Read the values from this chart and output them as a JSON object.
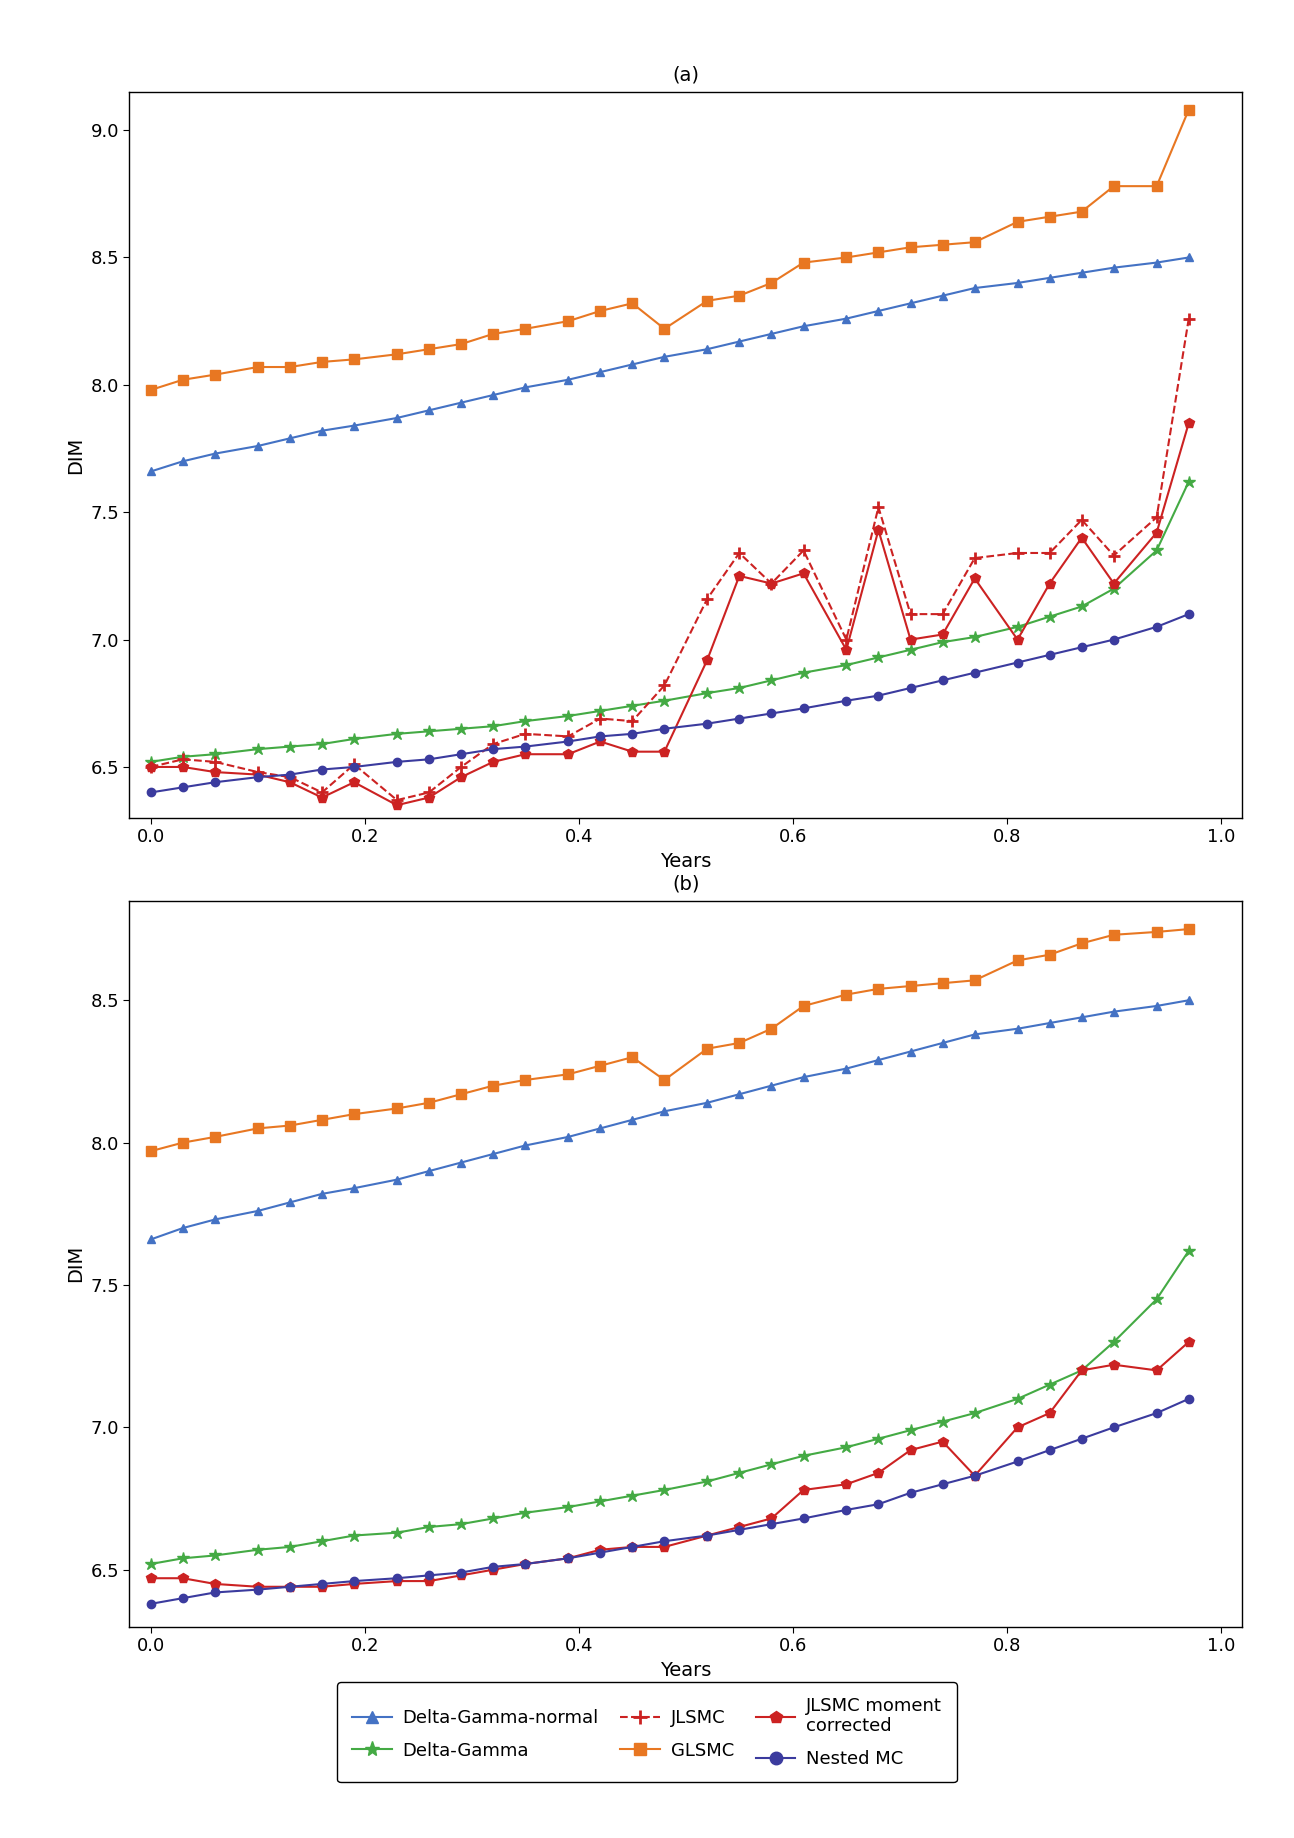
{
  "title_a": "(a)",
  "title_b": "(b)",
  "xlabel": "Years",
  "ylabel": "DIM",
  "x_ticks": [
    0.0,
    0.2,
    0.4,
    0.6,
    0.8,
    1.0
  ],
  "xlim": [
    -0.02,
    1.02
  ],
  "panel_a": {
    "delta_gamma_normal": {
      "x": [
        0.0,
        0.03,
        0.06,
        0.1,
        0.13,
        0.16,
        0.19,
        0.23,
        0.26,
        0.29,
        0.32,
        0.35,
        0.39,
        0.42,
        0.45,
        0.48,
        0.52,
        0.55,
        0.58,
        0.61,
        0.65,
        0.68,
        0.71,
        0.74,
        0.77,
        0.81,
        0.84,
        0.87,
        0.9,
        0.94,
        0.97
      ],
      "y": [
        7.66,
        7.7,
        7.73,
        7.76,
        7.79,
        7.82,
        7.84,
        7.87,
        7.9,
        7.93,
        7.96,
        7.99,
        8.02,
        8.05,
        8.08,
        8.11,
        8.14,
        8.17,
        8.2,
        8.23,
        8.26,
        8.29,
        8.32,
        8.35,
        8.38,
        8.4,
        8.42,
        8.44,
        8.46,
        8.48,
        8.5
      ]
    },
    "glsmc": {
      "x": [
        0.0,
        0.03,
        0.06,
        0.1,
        0.13,
        0.16,
        0.19,
        0.23,
        0.26,
        0.29,
        0.32,
        0.35,
        0.39,
        0.42,
        0.45,
        0.48,
        0.52,
        0.55,
        0.58,
        0.61,
        0.65,
        0.68,
        0.71,
        0.74,
        0.77,
        0.81,
        0.84,
        0.87,
        0.9,
        0.94,
        0.97
      ],
      "y": [
        7.98,
        8.02,
        8.04,
        8.07,
        8.07,
        8.09,
        8.1,
        8.12,
        8.14,
        8.16,
        8.2,
        8.22,
        8.25,
        8.29,
        8.32,
        8.22,
        8.33,
        8.35,
        8.4,
        8.48,
        8.5,
        8.52,
        8.54,
        8.55,
        8.56,
        8.64,
        8.66,
        8.68,
        8.78,
        8.78,
        9.08
      ]
    },
    "delta_gamma": {
      "x": [
        0.0,
        0.03,
        0.06,
        0.1,
        0.13,
        0.16,
        0.19,
        0.23,
        0.26,
        0.29,
        0.32,
        0.35,
        0.39,
        0.42,
        0.45,
        0.48,
        0.52,
        0.55,
        0.58,
        0.61,
        0.65,
        0.68,
        0.71,
        0.74,
        0.77,
        0.81,
        0.84,
        0.87,
        0.9,
        0.94,
        0.97
      ],
      "y": [
        6.52,
        6.54,
        6.55,
        6.57,
        6.58,
        6.59,
        6.61,
        6.63,
        6.64,
        6.65,
        6.66,
        6.68,
        6.7,
        6.72,
        6.74,
        6.76,
        6.79,
        6.81,
        6.84,
        6.87,
        6.9,
        6.93,
        6.96,
        6.99,
        7.01,
        7.05,
        7.09,
        7.13,
        7.2,
        7.35,
        7.62
      ]
    },
    "jlsmc_moment_corrected": {
      "x": [
        0.0,
        0.03,
        0.06,
        0.1,
        0.13,
        0.16,
        0.19,
        0.23,
        0.26,
        0.29,
        0.32,
        0.35,
        0.39,
        0.42,
        0.45,
        0.48,
        0.52,
        0.55,
        0.58,
        0.61,
        0.65,
        0.68,
        0.71,
        0.74,
        0.77,
        0.81,
        0.84,
        0.87,
        0.9,
        0.94,
        0.97
      ],
      "y": [
        6.5,
        6.5,
        6.48,
        6.47,
        6.44,
        6.38,
        6.44,
        6.35,
        6.38,
        6.46,
        6.52,
        6.55,
        6.55,
        6.6,
        6.56,
        6.56,
        6.92,
        7.25,
        7.22,
        7.26,
        6.96,
        7.43,
        7.0,
        7.02,
        7.24,
        7.0,
        7.22,
        7.4,
        7.22,
        7.42,
        7.85
      ]
    },
    "jlsmc": {
      "x": [
        0.0,
        0.03,
        0.06,
        0.1,
        0.13,
        0.16,
        0.19,
        0.23,
        0.26,
        0.29,
        0.32,
        0.35,
        0.39,
        0.42,
        0.45,
        0.48,
        0.52,
        0.55,
        0.58,
        0.61,
        0.65,
        0.68,
        0.71,
        0.74,
        0.77,
        0.81,
        0.84,
        0.87,
        0.9,
        0.94,
        0.97
      ],
      "y": [
        6.5,
        6.53,
        6.52,
        6.48,
        6.46,
        6.4,
        6.51,
        6.37,
        6.4,
        6.5,
        6.59,
        6.63,
        6.62,
        6.69,
        6.68,
        6.82,
        7.16,
        7.34,
        7.22,
        7.35,
        7.0,
        7.52,
        7.1,
        7.1,
        7.32,
        7.34,
        7.34,
        7.47,
        7.33,
        7.48,
        8.26
      ]
    },
    "nested_mc": {
      "x": [
        0.0,
        0.03,
        0.06,
        0.1,
        0.13,
        0.16,
        0.19,
        0.23,
        0.26,
        0.29,
        0.32,
        0.35,
        0.39,
        0.42,
        0.45,
        0.48,
        0.52,
        0.55,
        0.58,
        0.61,
        0.65,
        0.68,
        0.71,
        0.74,
        0.77,
        0.81,
        0.84,
        0.87,
        0.9,
        0.94,
        0.97
      ],
      "y": [
        6.4,
        6.42,
        6.44,
        6.46,
        6.47,
        6.49,
        6.5,
        6.52,
        6.53,
        6.55,
        6.57,
        6.58,
        6.6,
        6.62,
        6.63,
        6.65,
        6.67,
        6.69,
        6.71,
        6.73,
        6.76,
        6.78,
        6.81,
        6.84,
        6.87,
        6.91,
        6.94,
        6.97,
        7.0,
        7.05,
        7.1
      ]
    }
  },
  "panel_b": {
    "delta_gamma_normal": {
      "x": [
        0.0,
        0.03,
        0.06,
        0.1,
        0.13,
        0.16,
        0.19,
        0.23,
        0.26,
        0.29,
        0.32,
        0.35,
        0.39,
        0.42,
        0.45,
        0.48,
        0.52,
        0.55,
        0.58,
        0.61,
        0.65,
        0.68,
        0.71,
        0.74,
        0.77,
        0.81,
        0.84,
        0.87,
        0.9,
        0.94,
        0.97
      ],
      "y": [
        7.66,
        7.7,
        7.73,
        7.76,
        7.79,
        7.82,
        7.84,
        7.87,
        7.9,
        7.93,
        7.96,
        7.99,
        8.02,
        8.05,
        8.08,
        8.11,
        8.14,
        8.17,
        8.2,
        8.23,
        8.26,
        8.29,
        8.32,
        8.35,
        8.38,
        8.4,
        8.42,
        8.44,
        8.46,
        8.48,
        8.5
      ]
    },
    "glsmc": {
      "x": [
        0.0,
        0.03,
        0.06,
        0.1,
        0.13,
        0.16,
        0.19,
        0.23,
        0.26,
        0.29,
        0.32,
        0.35,
        0.39,
        0.42,
        0.45,
        0.48,
        0.52,
        0.55,
        0.58,
        0.61,
        0.65,
        0.68,
        0.71,
        0.74,
        0.77,
        0.81,
        0.84,
        0.87,
        0.9,
        0.94,
        0.97
      ],
      "y": [
        7.97,
        8.0,
        8.02,
        8.05,
        8.06,
        8.08,
        8.1,
        8.12,
        8.14,
        8.17,
        8.2,
        8.22,
        8.24,
        8.27,
        8.3,
        8.22,
        8.33,
        8.35,
        8.4,
        8.48,
        8.52,
        8.54,
        8.55,
        8.56,
        8.57,
        8.64,
        8.66,
        8.7,
        8.73,
        8.74,
        8.75
      ]
    },
    "delta_gamma": {
      "x": [
        0.0,
        0.03,
        0.06,
        0.1,
        0.13,
        0.16,
        0.19,
        0.23,
        0.26,
        0.29,
        0.32,
        0.35,
        0.39,
        0.42,
        0.45,
        0.48,
        0.52,
        0.55,
        0.58,
        0.61,
        0.65,
        0.68,
        0.71,
        0.74,
        0.77,
        0.81,
        0.84,
        0.87,
        0.9,
        0.94,
        0.97
      ],
      "y": [
        6.52,
        6.54,
        6.55,
        6.57,
        6.58,
        6.6,
        6.62,
        6.63,
        6.65,
        6.66,
        6.68,
        6.7,
        6.72,
        6.74,
        6.76,
        6.78,
        6.81,
        6.84,
        6.87,
        6.9,
        6.93,
        6.96,
        6.99,
        7.02,
        7.05,
        7.1,
        7.15,
        7.2,
        7.3,
        7.45,
        7.62
      ]
    },
    "jlsmc_moment_corrected": {
      "x": [
        0.0,
        0.03,
        0.06,
        0.1,
        0.13,
        0.16,
        0.19,
        0.23,
        0.26,
        0.29,
        0.32,
        0.35,
        0.39,
        0.42,
        0.45,
        0.48,
        0.52,
        0.55,
        0.58,
        0.61,
        0.65,
        0.68,
        0.71,
        0.74,
        0.77,
        0.81,
        0.84,
        0.87,
        0.9,
        0.94,
        0.97
      ],
      "y": [
        6.47,
        6.47,
        6.45,
        6.44,
        6.44,
        6.44,
        6.45,
        6.46,
        6.46,
        6.48,
        6.5,
        6.52,
        6.54,
        6.57,
        6.58,
        6.58,
        6.62,
        6.65,
        6.68,
        6.78,
        6.8,
        6.84,
        6.92,
        6.95,
        6.83,
        7.0,
        7.05,
        7.2,
        7.22,
        7.2,
        7.3
      ]
    },
    "nested_mc": {
      "x": [
        0.0,
        0.03,
        0.06,
        0.1,
        0.13,
        0.16,
        0.19,
        0.23,
        0.26,
        0.29,
        0.32,
        0.35,
        0.39,
        0.42,
        0.45,
        0.48,
        0.52,
        0.55,
        0.58,
        0.61,
        0.65,
        0.68,
        0.71,
        0.74,
        0.77,
        0.81,
        0.84,
        0.87,
        0.9,
        0.94,
        0.97
      ],
      "y": [
        6.38,
        6.4,
        6.42,
        6.43,
        6.44,
        6.45,
        6.46,
        6.47,
        6.48,
        6.49,
        6.51,
        6.52,
        6.54,
        6.56,
        6.58,
        6.6,
        6.62,
        6.64,
        6.66,
        6.68,
        6.71,
        6.73,
        6.77,
        6.8,
        6.83,
        6.88,
        6.92,
        6.96,
        7.0,
        7.05,
        7.1
      ]
    }
  },
  "colors": {
    "delta_gamma_normal": "#4472C4",
    "glsmc": "#E87722",
    "delta_gamma": "#44AA44",
    "jlsmc_moment_corrected": "#CC2222",
    "jlsmc": "#CC2222",
    "nested_mc": "#3B3B9E"
  },
  "legend_labels": {
    "delta_gamma_normal": "Delta-Gamma-normal",
    "glsmc": "GLSMC",
    "delta_gamma": "Delta-Gamma",
    "jlsmc_moment_corrected": "JLSMC moment\ncorrected",
    "jlsmc": "JLSMC",
    "nested_mc": "Nested MC"
  },
  "ylim_a": [
    6.3,
    9.15
  ],
  "ylim_b": [
    6.3,
    8.85
  ],
  "yticks_a": [
    6.5,
    7.0,
    7.5,
    8.0,
    8.5,
    9.0
  ],
  "yticks_b": [
    6.5,
    7.0,
    7.5,
    8.0,
    8.5
  ]
}
